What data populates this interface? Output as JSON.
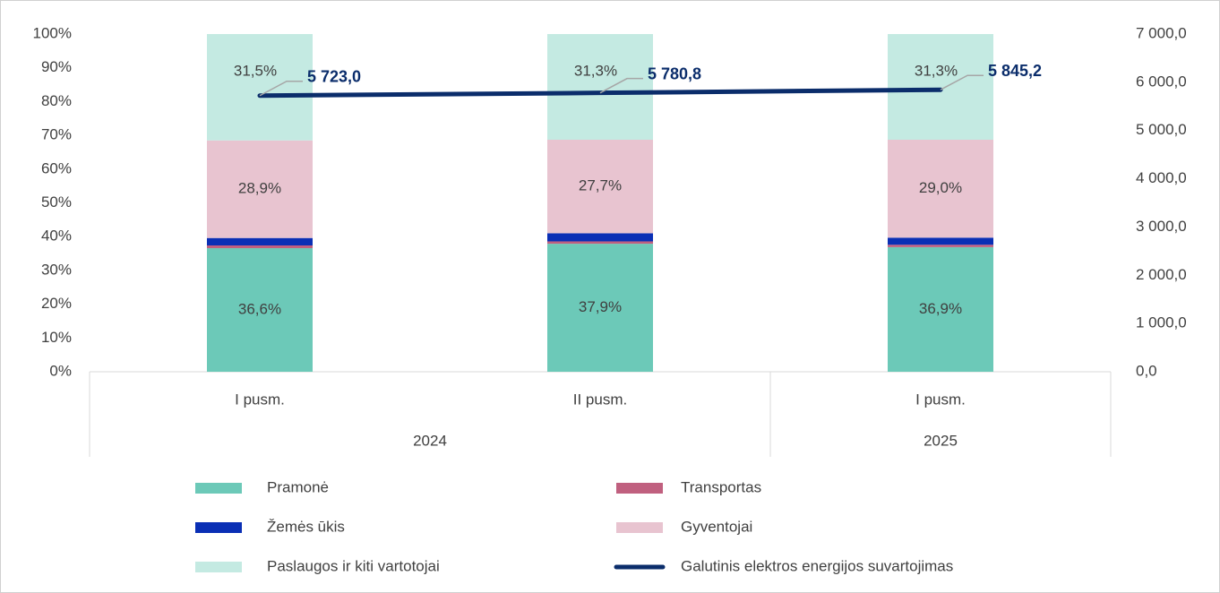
{
  "chart_data": {
    "type": "bar",
    "stacked": true,
    "categories": [
      "I pusm.",
      "II pusm.",
      "I pusm."
    ],
    "groups": [
      {
        "label": "2024",
        "size": 2
      },
      {
        "label": "2025",
        "size": 1
      }
    ],
    "series": [
      {
        "name": "Pramonė",
        "color": "#6cc9b8",
        "values": [
          36.6,
          37.9,
          36.9
        ],
        "value_labels": [
          "36,6%",
          "37,9%",
          "36,9%"
        ]
      },
      {
        "name": "Transportas",
        "color": "#c0607f",
        "values": [
          0.8,
          0.7,
          0.7
        ]
      },
      {
        "name": "Žemės ūkis",
        "color": "#0a2fb5",
        "values": [
          2.2,
          2.4,
          2.1
        ]
      },
      {
        "name": "Gyventojai",
        "color": "#e8c4d0",
        "values": [
          28.9,
          27.7,
          29.0
        ],
        "value_labels": [
          "28,9%",
          "27,7%",
          "29,0%"
        ]
      },
      {
        "name": "Paslaugos ir kiti vartotojai",
        "color": "#c4eae2",
        "values": [
          31.5,
          31.3,
          31.3
        ],
        "value_labels": [
          "31,5%",
          "31,3%",
          "31,3%"
        ]
      },
      {
        "name": "Galutinis elektros energijos suvartojimas",
        "color": "#0b2d6b",
        "type": "line",
        "axis": "y2",
        "values": [
          5723.0,
          5780.8,
          5845.2
        ],
        "value_labels": [
          "5 723,0",
          "5 780,8",
          "5 845,2"
        ]
      }
    ],
    "ylim": [
      0,
      100
    ],
    "yticks": [
      {
        "value": 0,
        "label": "0%"
      },
      {
        "value": 10,
        "label": "10%"
      },
      {
        "value": 20,
        "label": "20%"
      },
      {
        "value": 30,
        "label": "30%"
      },
      {
        "value": 40,
        "label": "40%"
      },
      {
        "value": 50,
        "label": "50%"
      },
      {
        "value": 60,
        "label": "60%"
      },
      {
        "value": 70,
        "label": "70%"
      },
      {
        "value": 80,
        "label": "80%"
      },
      {
        "value": 90,
        "label": "90%"
      },
      {
        "value": 100,
        "label": "100%"
      }
    ],
    "y2lim": [
      0,
      7000
    ],
    "y2ticks": [
      {
        "value": 0,
        "label": "0,0"
      },
      {
        "value": 1000,
        "label": "1 000,0"
      },
      {
        "value": 2000,
        "label": "2 000,0"
      },
      {
        "value": 3000,
        "label": "3 000,0"
      },
      {
        "value": 4000,
        "label": "4 000,0"
      },
      {
        "value": 5000,
        "label": "5 000,0"
      },
      {
        "value": 6000,
        "label": "6 000,0"
      },
      {
        "value": 7000,
        "label": "7 000,0"
      }
    ],
    "grid": false,
    "legend": "bottom"
  }
}
